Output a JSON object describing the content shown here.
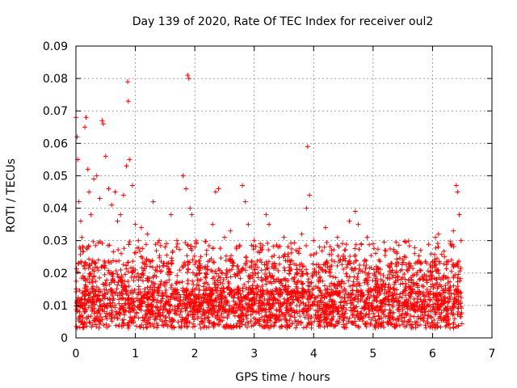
{
  "chart_data": {
    "type": "scatter",
    "title": "Day 139 of 2020, Rate Of TEC Index for receiver oul2",
    "xlabel": "GPS time / hours",
    "ylabel": "ROTI / TECUs",
    "xlim": [
      0,
      7
    ],
    "ylim": [
      0,
      0.09
    ],
    "x_ticks": [
      "0",
      "1",
      "2",
      "3",
      "4",
      "5",
      "6",
      "7"
    ],
    "y_ticks": [
      "0",
      "0.01",
      "0.02",
      "0.03",
      "0.04",
      "0.05",
      "0.06",
      "0.07",
      "0.08",
      "0.09"
    ],
    "grid": true,
    "marker": "plus",
    "color": "#ff0000",
    "points": [
      [
        0.0,
        0.068
      ],
      [
        0.02,
        0.062
      ],
      [
        0.03,
        0.055
      ],
      [
        0.05,
        0.042
      ],
      [
        0.08,
        0.036
      ],
      [
        0.1,
        0.031
      ],
      [
        0.12,
        0.028
      ],
      [
        0.15,
        0.065
      ],
      [
        0.17,
        0.068
      ],
      [
        0.2,
        0.052
      ],
      [
        0.22,
        0.045
      ],
      [
        0.25,
        0.038
      ],
      [
        0.3,
        0.049
      ],
      [
        0.35,
        0.05
      ],
      [
        0.4,
        0.043
      ],
      [
        0.44,
        0.067
      ],
      [
        0.46,
        0.066
      ],
      [
        0.5,
        0.056
      ],
      [
        0.55,
        0.046
      ],
      [
        0.6,
        0.041
      ],
      [
        0.66,
        0.045
      ],
      [
        0.7,
        0.036
      ],
      [
        0.75,
        0.038
      ],
      [
        0.8,
        0.044
      ],
      [
        0.85,
        0.053
      ],
      [
        0.87,
        0.079
      ],
      [
        0.88,
        0.073
      ],
      [
        0.9,
        0.055
      ],
      [
        0.95,
        0.047
      ],
      [
        1.0,
        0.035
      ],
      [
        1.05,
        0.03
      ],
      [
        1.1,
        0.034
      ],
      [
        1.2,
        0.032
      ],
      [
        1.3,
        0.042
      ],
      [
        1.4,
        0.03
      ],
      [
        1.5,
        0.028
      ],
      [
        1.6,
        0.038
      ],
      [
        1.7,
        0.03
      ],
      [
        1.8,
        0.05
      ],
      [
        1.85,
        0.046
      ],
      [
        1.88,
        0.081
      ],
      [
        1.9,
        0.08
      ],
      [
        1.92,
        0.04
      ],
      [
        1.95,
        0.038
      ],
      [
        2.0,
        0.028
      ],
      [
        2.1,
        0.025
      ],
      [
        2.2,
        0.027
      ],
      [
        2.3,
        0.035
      ],
      [
        2.35,
        0.045
      ],
      [
        2.4,
        0.046
      ],
      [
        2.5,
        0.031
      ],
      [
        2.6,
        0.033
      ],
      [
        2.7,
        0.028
      ],
      [
        2.8,
        0.047
      ],
      [
        2.85,
        0.042
      ],
      [
        2.9,
        0.035
      ],
      [
        3.0,
        0.03
      ],
      [
        3.1,
        0.029
      ],
      [
        3.2,
        0.038
      ],
      [
        3.25,
        0.035
      ],
      [
        3.3,
        0.025
      ],
      [
        3.4,
        0.028
      ],
      [
        3.5,
        0.031
      ],
      [
        3.6,
        0.024
      ],
      [
        3.7,
        0.027
      ],
      [
        3.8,
        0.032
      ],
      [
        3.88,
        0.04
      ],
      [
        3.9,
        0.059
      ],
      [
        3.93,
        0.044
      ],
      [
        4.0,
        0.03
      ],
      [
        4.1,
        0.028
      ],
      [
        4.2,
        0.034
      ],
      [
        4.3,
        0.027
      ],
      [
        4.4,
        0.031
      ],
      [
        4.5,
        0.025
      ],
      [
        4.6,
        0.036
      ],
      [
        4.7,
        0.039
      ],
      [
        4.75,
        0.035
      ],
      [
        4.8,
        0.029
      ],
      [
        4.9,
        0.031
      ],
      [
        5.0,
        0.029
      ],
      [
        5.1,
        0.024
      ],
      [
        5.2,
        0.027
      ],
      [
        5.3,
        0.023
      ],
      [
        5.4,
        0.026
      ],
      [
        5.5,
        0.024
      ],
      [
        5.6,
        0.022
      ],
      [
        5.7,
        0.026
      ],
      [
        5.8,
        0.027
      ],
      [
        5.9,
        0.023
      ],
      [
        6.0,
        0.022
      ],
      [
        6.05,
        0.031
      ],
      [
        6.1,
        0.032
      ],
      [
        6.2,
        0.025
      ],
      [
        6.3,
        0.029
      ],
      [
        6.35,
        0.033
      ],
      [
        6.4,
        0.047
      ],
      [
        6.42,
        0.045
      ],
      [
        6.45,
        0.038
      ],
      [
        6.48,
        0.03
      ]
    ]
  }
}
